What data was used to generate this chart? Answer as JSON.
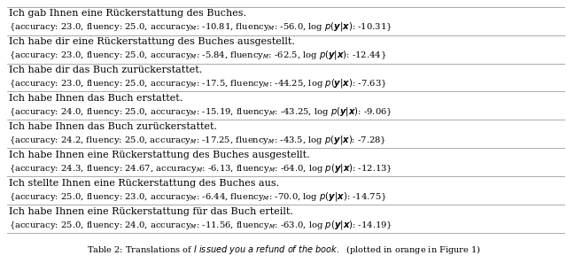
{
  "rows": [
    {
      "translation": "Ich gab Ihnen eine Rückerstattung des Buches.",
      "acc": "23.0",
      "flu": "25.0",
      "acc_m": "-10.81",
      "flu_m": "-56.0",
      "logp": "-10.31"
    },
    {
      "translation": "Ich habe dir eine Rückerstattung des Buches ausgestellt.",
      "acc": "23.0",
      "flu": "25.0",
      "acc_m": "-5.84",
      "flu_m": "-62.5",
      "logp": "-12.44"
    },
    {
      "translation": "Ich habe dir das Buch zurückerstattet.",
      "acc": "23.0",
      "flu": "25.0",
      "acc_m": "-17.5",
      "flu_m": "-44.25",
      "logp": "-7.63"
    },
    {
      "translation": "Ich habe Ihnen das Buch erstattet.",
      "acc": "24.0",
      "flu": "25.0",
      "acc_m": "-15.19",
      "flu_m": "-43.25",
      "logp": "-9.06"
    },
    {
      "translation": "Ich habe Ihnen das Buch zurückerstattet.",
      "acc": "24.2",
      "flu": "25.0",
      "acc_m": "-17.25",
      "flu_m": "-43.5",
      "logp": "-7.28"
    },
    {
      "translation": "Ich habe Ihnen eine Rückerstattung des Buches ausgestellt.",
      "acc": "24.3",
      "flu": "24.67",
      "acc_m": "-6.13",
      "flu_m": "-64.0",
      "logp": "-12.13"
    },
    {
      "translation": "Ich stellte Ihnen eine Rückerstattung des Buches aus.",
      "acc": "25.0",
      "flu": "23.0",
      "acc_m": "-6.44",
      "flu_m": "-70.0",
      "logp": "-14.75"
    },
    {
      "translation": "Ich habe Ihnen eine Rückerstattung für das Buch erteilt.",
      "acc": "25.0",
      "flu": "24.0",
      "acc_m": "-11.56",
      "flu_m": "-63.0",
      "logp": "-14.19"
    }
  ],
  "bg_color": "#ffffff",
  "text_color": "#000000",
  "line_color": "#888888",
  "font_size_translation": 8.0,
  "font_size_stats": 7.2,
  "font_size_caption": 7.0
}
